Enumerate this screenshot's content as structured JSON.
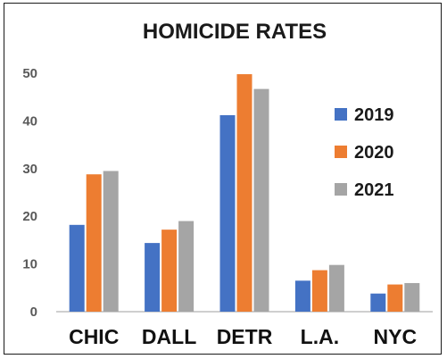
{
  "chart_data": {
    "type": "bar",
    "title": "HOMICIDE RATES",
    "xlabel": "",
    "ylabel": "",
    "categories": [
      "CHIC",
      "DALL",
      "DETR",
      "L.A.",
      "NYC"
    ],
    "series": [
      {
        "name": "2019",
        "color": "#4472c4",
        "values": [
          18.2,
          14.4,
          41.2,
          6.5,
          3.8
        ]
      },
      {
        "name": "2020",
        "color": "#ed7d31",
        "values": [
          28.8,
          17.2,
          49.8,
          8.7,
          5.7
        ]
      },
      {
        "name": "2021",
        "color": "#a5a5a5",
        "values": [
          29.5,
          19.0,
          46.7,
          9.8,
          6.0
        ]
      }
    ],
    "ylim": [
      0,
      50
    ],
    "yticks": [
      0,
      10,
      20,
      30,
      40,
      50
    ],
    "grid": false,
    "legend_position": "right"
  }
}
